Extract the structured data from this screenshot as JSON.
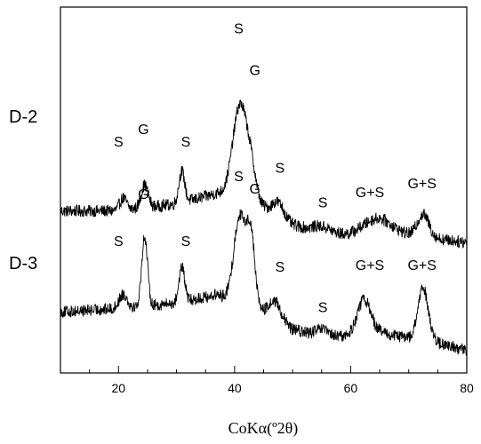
{
  "chart_data": {
    "type": "line",
    "title": "",
    "xlabel": "CoKα(º2θ)",
    "ylabel": "",
    "xlim": [
      10,
      80
    ],
    "xticks": [
      20,
      40,
      60,
      80
    ],
    "xtick_labels": [
      "20",
      "40",
      "60",
      "80"
    ],
    "grid": false,
    "y_ticks_shown": false,
    "colors": {
      "line": "#000000",
      "frame": "#000000"
    },
    "series": [
      {
        "name": "D-2",
        "base": 0.58,
        "noise": 0.035,
        "baseline": [
          [
            10,
            0.58
          ],
          [
            20,
            0.58
          ],
          [
            30,
            0.62
          ],
          [
            37,
            0.68
          ],
          [
            45,
            0.6
          ],
          [
            50,
            0.5
          ],
          [
            55,
            0.45
          ],
          [
            60,
            0.44
          ],
          [
            65,
            0.47
          ],
          [
            70,
            0.44
          ],
          [
            75,
            0.42
          ],
          [
            80,
            0.4
          ]
        ],
        "peaks": [
          {
            "x": 20.8,
            "h": 0.07,
            "w": 0.6
          },
          {
            "x": 24.5,
            "h": 0.13,
            "w": 0.6
          },
          {
            "x": 30.9,
            "h": 0.18,
            "w": 0.5
          },
          {
            "x": 41.0,
            "h": 0.55,
            "w": 1.3
          },
          {
            "x": 43.0,
            "h": 0.12,
            "w": 0.8
          },
          {
            "x": 47.5,
            "h": 0.08,
            "w": 1.0
          },
          {
            "x": 55.0,
            "h": 0.04,
            "w": 1.5
          },
          {
            "x": 64.5,
            "h": 0.07,
            "w": 2.5
          },
          {
            "x": 72.5,
            "h": 0.13,
            "w": 1.0
          }
        ],
        "annotations": [
          {
            "text": "S",
            "x": 20.0,
            "y": 0.95
          },
          {
            "text": "G",
            "x": 24.3,
            "y": 1.02
          },
          {
            "text": "S",
            "x": 31.6,
            "y": 0.95
          },
          {
            "text": "S",
            "x": 40.7,
            "y": 1.6
          },
          {
            "text": "G",
            "x": 43.5,
            "y": 1.36
          },
          {
            "text": "S",
            "x": 47.8,
            "y": 0.8
          },
          {
            "text": "S",
            "x": 55.2,
            "y": 0.6
          },
          {
            "text": "G+S",
            "x": 63.3,
            "y": 0.66
          },
          {
            "text": "G+S",
            "x": 72.3,
            "y": 0.71
          }
        ]
      },
      {
        "name": "D-3",
        "base": 0.0,
        "noise": 0.035,
        "baseline": [
          [
            10,
            0.0
          ],
          [
            20,
            0.02
          ],
          [
            30,
            0.05
          ],
          [
            37,
            0.1
          ],
          [
            45,
            0.0
          ],
          [
            50,
            -0.1
          ],
          [
            55,
            -0.14
          ],
          [
            60,
            -0.14
          ],
          [
            65,
            -0.12
          ],
          [
            70,
            -0.15
          ],
          [
            75,
            -0.18
          ],
          [
            80,
            -0.22
          ]
        ],
        "peaks": [
          {
            "x": 20.8,
            "h": 0.08,
            "w": 0.7
          },
          {
            "x": 24.5,
            "h": 0.4,
            "w": 0.5
          },
          {
            "x": 30.9,
            "h": 0.2,
            "w": 0.5
          },
          {
            "x": 40.9,
            "h": 0.5,
            "w": 1.0
          },
          {
            "x": 42.8,
            "h": 0.4,
            "w": 0.7
          },
          {
            "x": 47.0,
            "h": 0.1,
            "w": 1.0
          },
          {
            "x": 55.0,
            "h": 0.04,
            "w": 1.0
          },
          {
            "x": 62.3,
            "h": 0.2,
            "w": 1.2
          },
          {
            "x": 72.5,
            "h": 0.3,
            "w": 0.9
          }
        ],
        "annotations": [
          {
            "text": "S",
            "x": 20.0,
            "y": 0.38
          },
          {
            "text": "G",
            "x": 24.3,
            "y": 0.65
          },
          {
            "text": "S",
            "x": 31.6,
            "y": 0.38
          },
          {
            "text": "S",
            "x": 40.7,
            "y": 0.75
          },
          {
            "text": "G",
            "x": 43.5,
            "y": 0.68
          },
          {
            "text": "S",
            "x": 47.8,
            "y": 0.23
          },
          {
            "text": "S",
            "x": 55.2,
            "y": 0.0
          },
          {
            "text": "G+S",
            "x": 63.3,
            "y": 0.24
          },
          {
            "text": "G+S",
            "x": 72.3,
            "y": 0.24
          }
        ]
      }
    ],
    "ylim": [
      -0.35,
      1.75
    ],
    "series_labels": [
      "D-2",
      "D-3"
    ]
  }
}
